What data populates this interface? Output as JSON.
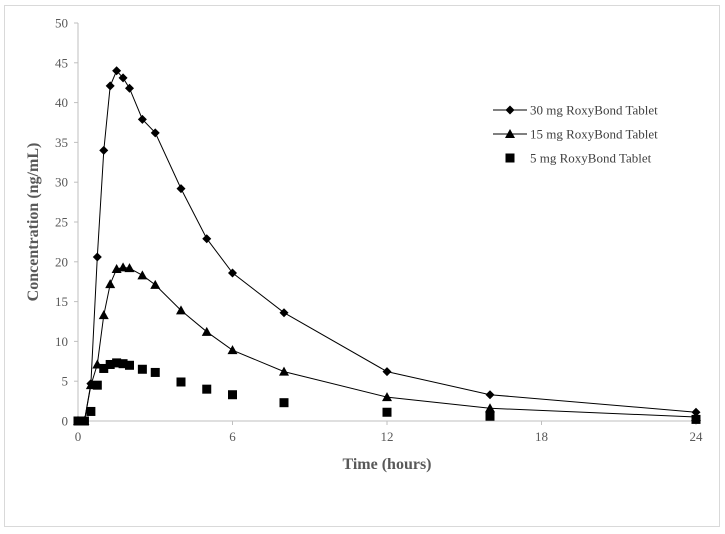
{
  "chart_data": {
    "type": "line",
    "title": "",
    "xlabel": "Time (hours)",
    "ylabel": "Concentration (ng/mL)",
    "xlim": [
      0,
      24
    ],
    "ylim": [
      0,
      50
    ],
    "xticks": [
      0,
      6,
      12,
      18,
      24
    ],
    "yticks": [
      0,
      5,
      10,
      15,
      20,
      25,
      30,
      35,
      40,
      45,
      50
    ],
    "grid": false,
    "legend_position": "right",
    "series": [
      {
        "name": "30 mg RoxyBond Tablet",
        "marker": "diamond",
        "line": true,
        "color": "#000000",
        "x": [
          0,
          0.25,
          0.5,
          0.75,
          1,
          1.25,
          1.5,
          1.75,
          2,
          2.5,
          3,
          4,
          5,
          6,
          8,
          12,
          16,
          24
        ],
        "y": [
          0,
          0,
          4.7,
          20.6,
          34,
          42.1,
          44,
          43.1,
          41.8,
          37.9,
          36.2,
          29.2,
          22.9,
          18.6,
          13.6,
          6.2,
          3.3,
          1.1
        ]
      },
      {
        "name": "15 mg RoxyBond Tablet",
        "marker": "triangle",
        "line": true,
        "color": "#000000",
        "x": [
          0,
          0.25,
          0.5,
          0.75,
          1,
          1.25,
          1.5,
          1.75,
          2,
          2.5,
          3,
          4,
          5,
          6,
          8,
          12,
          16,
          24
        ],
        "y": [
          0,
          0,
          4.5,
          7.1,
          13.3,
          17.2,
          19.1,
          19.3,
          19.2,
          18.3,
          17.1,
          13.9,
          11.2,
          8.9,
          6.2,
          3.0,
          1.6,
          0.5
        ]
      },
      {
        "name": "5 mg RoxyBond Tablet",
        "marker": "square",
        "line": false,
        "color": "#000000",
        "x": [
          0,
          0.25,
          0.5,
          0.75,
          1,
          1.25,
          1.5,
          1.75,
          2,
          2.5,
          3,
          4,
          5,
          6,
          8,
          12,
          16,
          24
        ],
        "y": [
          0,
          0,
          1.2,
          4.5,
          6.6,
          7.1,
          7.3,
          7.2,
          7.0,
          6.5,
          6.1,
          4.9,
          4.0,
          3.3,
          2.3,
          1.1,
          0.6,
          0.2
        ]
      }
    ]
  }
}
